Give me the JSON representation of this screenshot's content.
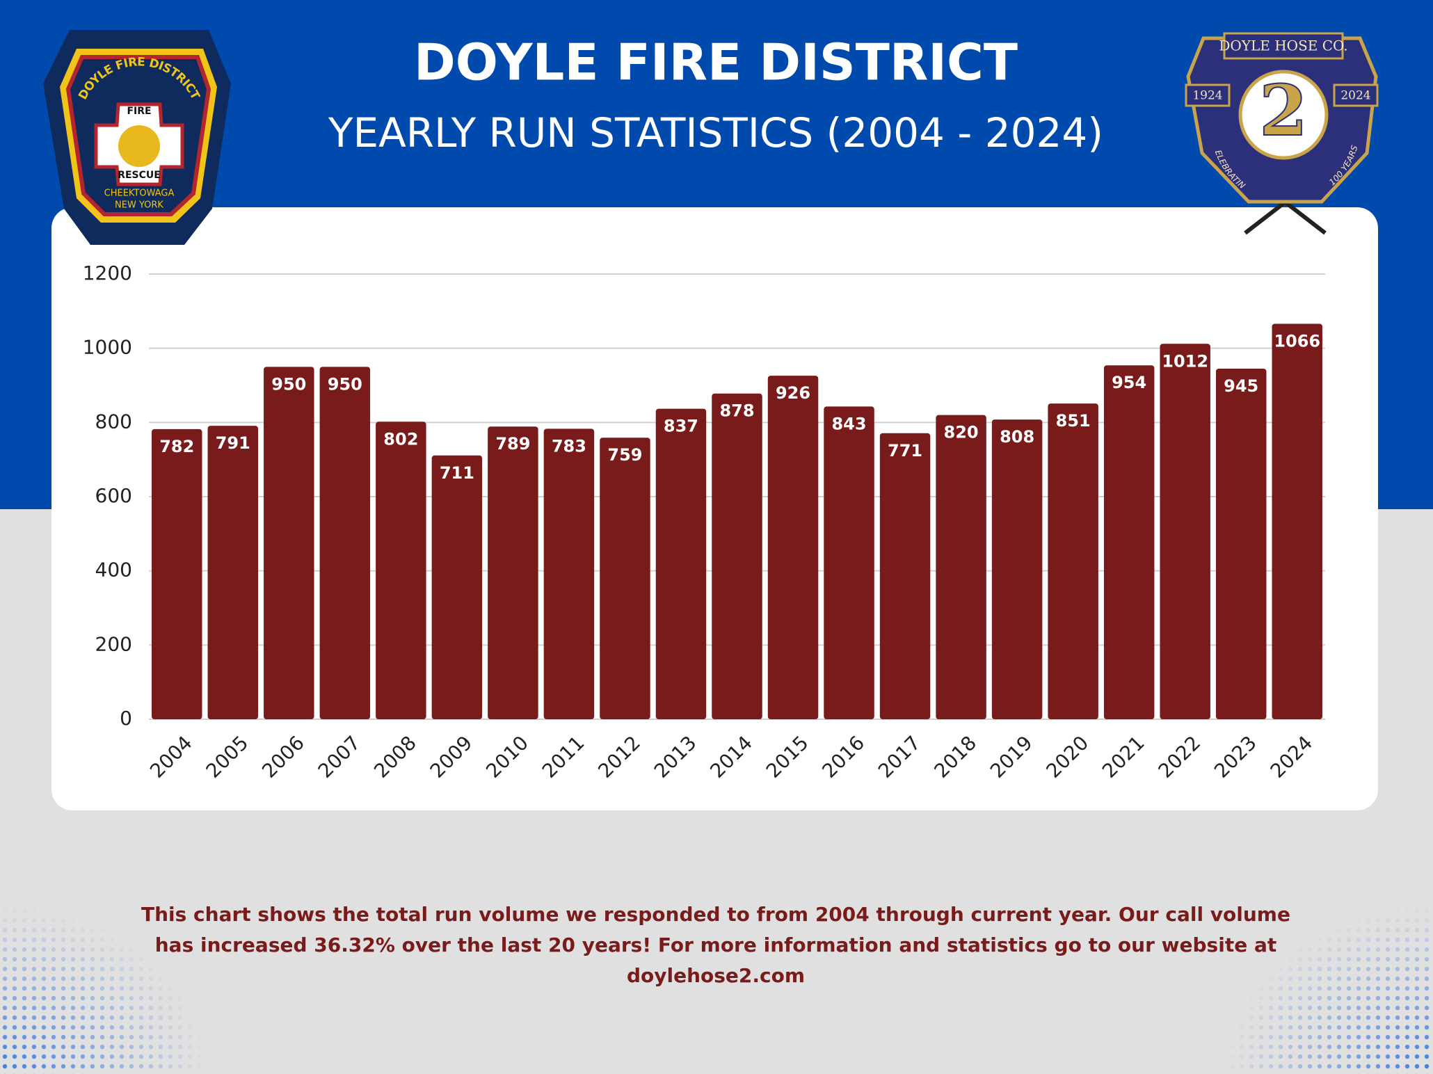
{
  "chart_data": {
    "type": "bar",
    "title": "DOYLE FIRE DISTRICT",
    "subtitle": "YEARLY RUN STATISTICS (2004 - 2024)",
    "categories": [
      "2004",
      "2005",
      "2006",
      "2007",
      "2008",
      "2009",
      "2010",
      "2011",
      "2012",
      "2013",
      "2014",
      "2015",
      "2016",
      "2017",
      "2018",
      "2019",
      "2020",
      "2021",
      "2022",
      "2023",
      "2024"
    ],
    "values": [
      782,
      791,
      950,
      950,
      802,
      711,
      789,
      783,
      759,
      837,
      878,
      926,
      843,
      771,
      820,
      808,
      851,
      954,
      1012,
      945,
      1066
    ],
    "color": "#7a1b1b",
    "ylim": [
      0,
      1200
    ],
    "yticks": [
      0,
      200,
      400,
      600,
      800,
      1000,
      1200
    ],
    "grid": true
  },
  "left_badge": {
    "arc": "DOYLE FIRE DISTRICT",
    "top": "FIRE",
    "bottom": "RESCUE",
    "line1": "CHEEKTOWAGA",
    "line2": "NEW YORK"
  },
  "right_badge": {
    "banner": "DOYLE HOSE CO.",
    "left_year": "1924",
    "right_year": "2024",
    "number": "2",
    "left_arc": "CELEBRATING",
    "right_arc": "100 YEARS"
  },
  "footer": {
    "lines": [
      "This chart shows the total run volume we responded to from 2004 through current year. Our call volume",
      "has increased 36.32% over the last 20 years! For more information and statistics go to our website at",
      "doylehose2.com"
    ]
  }
}
